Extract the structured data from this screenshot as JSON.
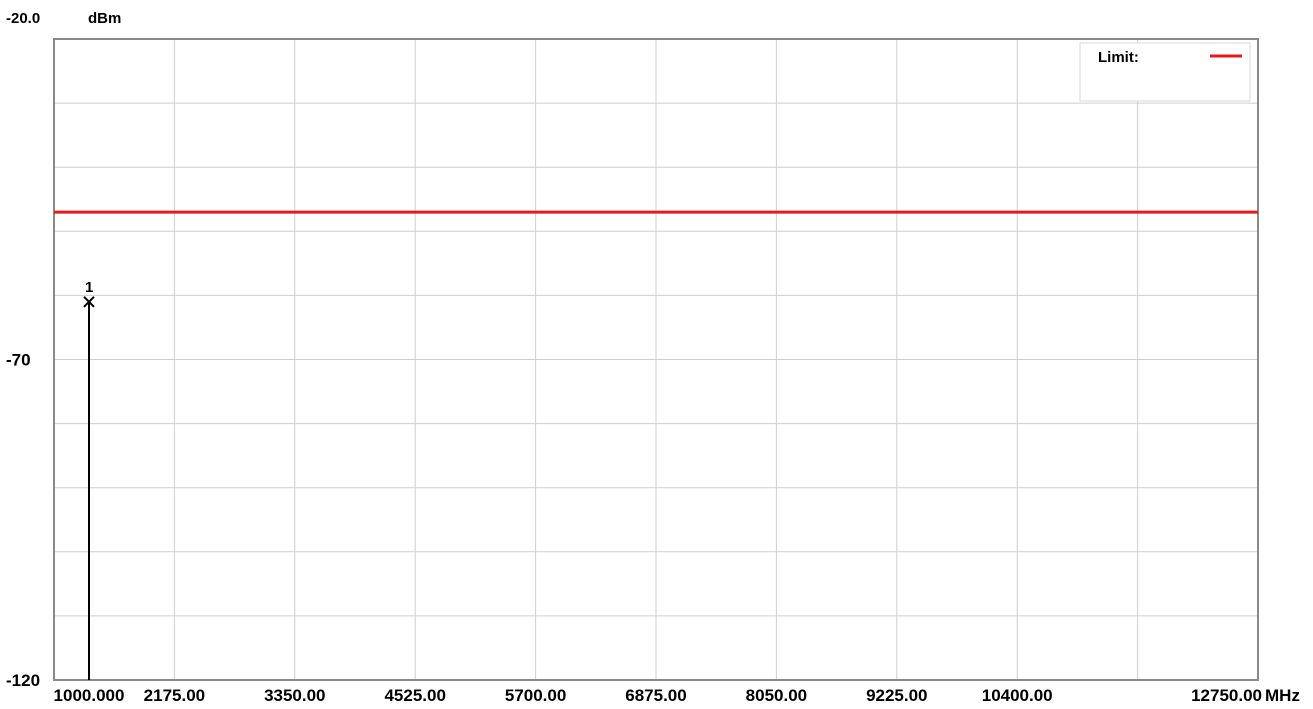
{
  "chart_data": {
    "type": "line",
    "unit_y": "dBm",
    "unit_x": "MHz",
    "y_top_label": "-20.0",
    "y_tick_labels": [
      {
        "value": -70,
        "label": "-70"
      },
      {
        "value": -120,
        "label": "-120"
      }
    ],
    "x_tick_labels": [
      {
        "value": 1000,
        "label": "1000.000"
      },
      {
        "value": 2175,
        "label": "2175.00"
      },
      {
        "value": 3350,
        "label": "3350.00"
      },
      {
        "value": 4525,
        "label": "4525.00"
      },
      {
        "value": 5700,
        "label": "5700.00"
      },
      {
        "value": 6875,
        "label": "6875.00"
      },
      {
        "value": 8050,
        "label": "8050.00"
      },
      {
        "value": 9225,
        "label": "9225.00"
      },
      {
        "value": 10400,
        "label": "10400.00"
      },
      {
        "value": 12750,
        "label": "12750.00"
      }
    ],
    "xlim": [
      1000,
      12750
    ],
    "ylim": [
      -120,
      -20
    ],
    "grid": true,
    "grid_x_step": 1175,
    "grid_y_step": 10,
    "series": [
      {
        "name": "Limit:",
        "color": "#e31b1b",
        "x": [
          1000,
          12750
        ],
        "y": [
          -47,
          -47
        ]
      }
    ],
    "markers": [
      {
        "label": "1",
        "x": 1000,
        "y": -61
      }
    ],
    "legend": {
      "position": "top-right",
      "entries": [
        {
          "label": "Limit:",
          "color": "#e31b1b"
        }
      ]
    },
    "colors": {
      "grid": "#cfcfcf",
      "frame": "#8a8a8a",
      "limit": "#e31b1b",
      "marker": "#000000"
    }
  }
}
